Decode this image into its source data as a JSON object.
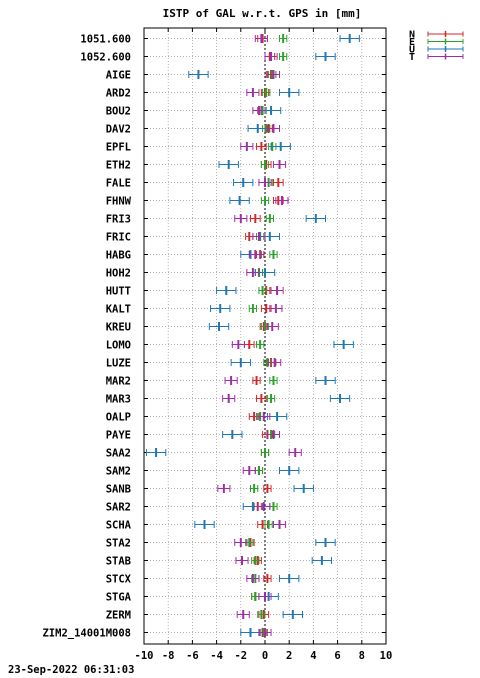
{
  "chart_data": {
    "type": "scatter",
    "title": "ISTP of GAL w.r.t. GPS in [mm]",
    "xlim": [
      -10,
      10
    ],
    "x_ticks": [
      -10,
      -8,
      -6,
      -4,
      -2,
      0,
      2,
      4,
      6,
      8,
      10
    ],
    "grid": true,
    "legend_position": "top-right, outside plot",
    "timestamp": "23-Sep-2022 06:31:03",
    "categories": [
      "1051.600",
      "1052.600",
      "AIGE",
      "ARD2",
      "BOU2",
      "DAV2",
      "EPFL",
      "ETH2",
      "FALE",
      "FHNW",
      "FRI3",
      "FRIC",
      "HABG",
      "HOH2",
      "HUTT",
      "KALT",
      "KREU",
      "LOMO",
      "LUZE",
      "MAR2",
      "MAR3",
      "OALP",
      "PAYE",
      "SAA2",
      "SAM2",
      "SANB",
      "SAR2",
      "SCHA",
      "STA2",
      "STAB",
      "STCX",
      "STGA",
      "ZERM",
      "ZIM2_14001M008"
    ],
    "series": [
      {
        "name": "N",
        "color": "#d62728",
        "values": [
          -0.2,
          0.4,
          0.5,
          0.0,
          -0.3,
          0.3,
          -0.3,
          0.1,
          1.1,
          1.1,
          -0.8,
          -1.3,
          -0.4,
          -0.5,
          0.1,
          0.1,
          -0.1,
          -1.3,
          0.5,
          -0.7,
          -0.3,
          -0.9,
          0.2,
          0.0,
          -0.5,
          0.2,
          -0.6,
          -0.2,
          -1.2,
          -0.6,
          0.2,
          -0.8,
          -0.1,
          -0.2
        ],
        "err": [
          0.4,
          0.4,
          0.4,
          0.3,
          0.3,
          0.3,
          0.4,
          0.4,
          0.4,
          0.4,
          0.4,
          0.3,
          0.3,
          0.3,
          0.3,
          0.4,
          0.3,
          0.4,
          0.4,
          0.3,
          0.4,
          0.4,
          0.4,
          0.3,
          0.3,
          0.3,
          0.3,
          0.4,
          0.3,
          0.3,
          0.3,
          0.3,
          0.4,
          0.3
        ]
      },
      {
        "name": "E",
        "color": "#2ca02c",
        "values": [
          1.5,
          1.5,
          0.6,
          0.1,
          -0.2,
          0.1,
          0.6,
          0.0,
          0.3,
          0.0,
          0.4,
          -0.4,
          0.7,
          -0.5,
          -0.2,
          -1.0,
          0.0,
          -0.4,
          0.2,
          0.7,
          0.5,
          -0.4,
          0.5,
          0.0,
          -0.5,
          -0.9,
          0.7,
          0.3,
          -1.3,
          -0.8,
          -0.8,
          -0.8,
          -0.3,
          -0.1
        ],
        "err": [
          0.3,
          0.3,
          0.3,
          0.3,
          0.3,
          0.3,
          0.3,
          0.3,
          0.3,
          0.3,
          0.3,
          0.3,
          0.3,
          0.3,
          0.3,
          0.3,
          0.3,
          0.3,
          0.3,
          0.3,
          0.3,
          0.3,
          0.3,
          0.3,
          0.3,
          0.3,
          0.3,
          0.3,
          0.3,
          0.3,
          0.3,
          0.3,
          0.3,
          0.3
        ]
      },
      {
        "name": "U",
        "color": "#1f77b4",
        "values": [
          7.0,
          5.0,
          -5.5,
          2.0,
          0.5,
          -0.6,
          1.3,
          -3.0,
          -1.8,
          -2.1,
          4.2,
          0.4,
          -1.2,
          0.0,
          -3.2,
          -3.7,
          -3.8,
          6.5,
          -2.0,
          5.0,
          6.2,
          1.0,
          -2.7,
          -9.0,
          2.0,
          3.2,
          -1.0,
          -5.0,
          5.0,
          4.7,
          2.0,
          0.3,
          2.3,
          -1.2
        ],
        "err": [
          0.8,
          0.8,
          0.8,
          0.8,
          0.8,
          0.8,
          0.8,
          0.8,
          0.8,
          0.8,
          0.8,
          0.8,
          0.8,
          0.8,
          0.8,
          0.8,
          0.8,
          0.8,
          0.8,
          0.8,
          0.8,
          0.8,
          0.8,
          0.8,
          0.8,
          0.8,
          0.8,
          0.8,
          0.8,
          0.8,
          0.8,
          0.8,
          0.8,
          0.8
        ]
      },
      {
        "name": "T",
        "color": "#a02ca8",
        "values": [
          -0.3,
          0.5,
          0.7,
          -1.0,
          -0.5,
          0.7,
          -1.5,
          1.2,
          0.0,
          1.4,
          -2.0,
          -0.5,
          -0.8,
          -1.0,
          1.0,
          0.9,
          0.6,
          -2.2,
          0.8,
          -2.8,
          -3.0,
          -0.1,
          0.7,
          2.5,
          -1.3,
          -3.4,
          -0.1,
          1.2,
          -2.0,
          -1.9,
          -1.0,
          0.0,
          -1.8,
          0.0
        ],
        "err": [
          0.5,
          0.5,
          0.5,
          0.5,
          0.5,
          0.5,
          0.5,
          0.5,
          0.5,
          0.5,
          0.5,
          0.5,
          0.5,
          0.5,
          0.5,
          0.5,
          0.5,
          0.5,
          0.5,
          0.5,
          0.5,
          0.5,
          0.5,
          0.5,
          0.5,
          0.5,
          0.5,
          0.5,
          0.5,
          0.5,
          0.5,
          0.5,
          0.5,
          0.5
        ]
      }
    ]
  }
}
